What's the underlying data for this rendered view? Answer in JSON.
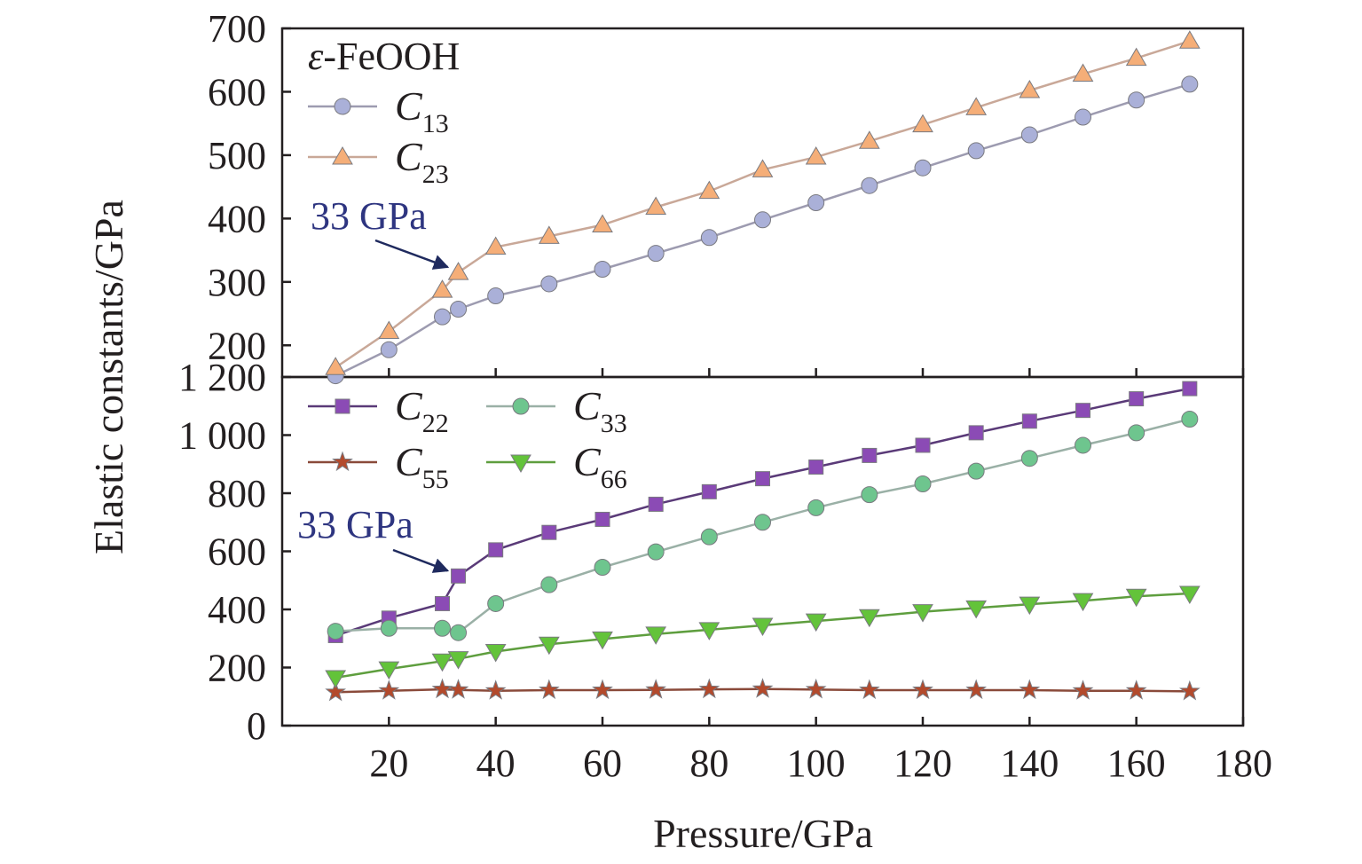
{
  "chart_data": [
    {
      "type": "line",
      "panel": "top",
      "title": "ε-FeOOH",
      "title_prefix": "ε",
      "title_suffix": "-FeOOH",
      "xlabel": "Pressure/GPa",
      "ylabel": "Elastic constants/GPa",
      "xlim": [
        0,
        180
      ],
      "ylim": [
        150,
        700
      ],
      "yticks": [
        "200",
        "300",
        "400",
        "500",
        "600",
        "700"
      ],
      "legend_position": "top-left",
      "annotation": {
        "text": "33 GPa",
        "x": 33,
        "y": 315
      },
      "x": [
        10,
        20,
        30,
        33,
        40,
        50,
        60,
        70,
        80,
        90,
        100,
        110,
        120,
        130,
        140,
        150,
        160,
        170
      ],
      "series": [
        {
          "name": "C13",
          "symbol": "C",
          "subscript": "13",
          "marker": "circle",
          "color": "#aab0d8",
          "line_color": "#9d9bb0",
          "values": [
            152,
            193,
            245,
            257,
            278,
            297,
            320,
            345,
            370,
            398,
            425,
            452,
            480,
            507,
            532,
            560,
            587,
            612
          ]
        },
        {
          "name": "C23",
          "symbol": "C",
          "subscript": "23",
          "marker": "triangle-up",
          "color": "#f5ae78",
          "line_color": "#c9a898",
          "values": [
            165,
            222,
            287,
            315,
            355,
            372,
            390,
            418,
            443,
            477,
            497,
            522,
            548,
            575,
            602,
            628,
            653,
            680
          ]
        }
      ]
    },
    {
      "type": "line",
      "panel": "bottom",
      "xlabel": "Pressure/GPa",
      "ylabel": "Elastic constants/GPa",
      "xlim": [
        0,
        180
      ],
      "ylim": [
        0,
        1200
      ],
      "xticks": [
        "20",
        "40",
        "60",
        "80",
        "100",
        "120",
        "140",
        "160",
        "180"
      ],
      "yticks": [
        "0",
        "200",
        "400",
        "600",
        "800",
        "1 000",
        "1 200"
      ],
      "legend_position": "top-left",
      "annotation": {
        "text": "33 GPa",
        "x": 33,
        "y": 515
      },
      "x": [
        10,
        20,
        30,
        33,
        40,
        50,
        60,
        70,
        80,
        90,
        100,
        110,
        120,
        130,
        140,
        150,
        160,
        170
      ],
      "series": [
        {
          "name": "C22",
          "symbol": "C",
          "subscript": "22",
          "marker": "square",
          "color": "#8b4bb5",
          "line_color": "#5a3a78",
          "values": [
            310,
            370,
            420,
            515,
            605,
            665,
            710,
            762,
            805,
            850,
            890,
            930,
            965,
            1008,
            1048,
            1085,
            1125,
            1160
          ]
        },
        {
          "name": "C33",
          "symbol": "C",
          "subscript": "33",
          "marker": "circle",
          "color": "#6ec58e",
          "line_color": "#9ab0a6",
          "values": [
            325,
            335,
            335,
            320,
            420,
            485,
            545,
            598,
            650,
            700,
            750,
            795,
            832,
            876,
            920,
            965,
            1008,
            1055
          ]
        },
        {
          "name": "C55",
          "symbol": "C",
          "subscript": "55",
          "marker": "star",
          "color": "#b34a2c",
          "line_color": "#8a4a3a",
          "values": [
            115,
            120,
            125,
            123,
            120,
            122,
            122,
            123,
            125,
            126,
            124,
            122,
            122,
            122,
            122,
            120,
            120,
            118
          ]
        },
        {
          "name": "C66",
          "symbol": "C",
          "subscript": "66",
          "marker": "triangle-down",
          "color": "#63c33a",
          "line_color": "#5e9e3e",
          "values": [
            165,
            195,
            222,
            230,
            255,
            280,
            298,
            315,
            330,
            345,
            360,
            375,
            392,
            405,
            418,
            430,
            445,
            455
          ]
        }
      ]
    }
  ]
}
